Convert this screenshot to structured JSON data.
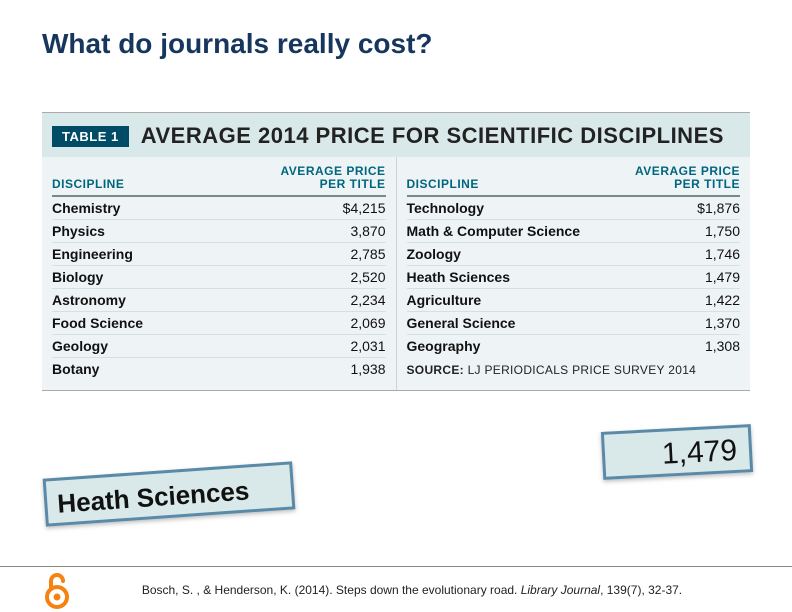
{
  "slide_title": "What do journals really cost?",
  "table": {
    "badge": "TABLE 1",
    "caption": "AVERAGE 2014 PRICE FOR SCIENTIFIC DISCIPLINES",
    "header_discipline": "DISCIPLINE",
    "header_price_line1": "AVERAGE PRICE",
    "header_price_line2": "PER TITLE",
    "background_color": "#eef4f5",
    "title_bg_color": "#d9e8e9",
    "badge_bg": "#004c66",
    "header_color": "#00667f",
    "left": [
      {
        "discipline": "Chemistry",
        "price": "$4,215"
      },
      {
        "discipline": "Physics",
        "price": "3,870"
      },
      {
        "discipline": "Engineering",
        "price": "2,785"
      },
      {
        "discipline": "Biology",
        "price": "2,520"
      },
      {
        "discipline": "Astronomy",
        "price": "2,234"
      },
      {
        "discipline": "Food Science",
        "price": "2,069"
      },
      {
        "discipline": "Geology",
        "price": "2,031"
      },
      {
        "discipline": "Botany",
        "price": "1,938"
      }
    ],
    "right": [
      {
        "discipline": "Technology",
        "price": "$1,876"
      },
      {
        "discipline": "Math & Computer Science",
        "price": "1,750"
      },
      {
        "discipline": "Zoology",
        "price": "1,746"
      },
      {
        "discipline": "Heath Sciences",
        "price": "1,479"
      },
      {
        "discipline": "Agriculture",
        "price": "1,422"
      },
      {
        "discipline": "General Science",
        "price": "1,370"
      },
      {
        "discipline": "Geography",
        "price": "1,308"
      }
    ],
    "source_label": "SOURCE:",
    "source_text": " LJ PERIODICALS PRICE SURVEY 2014"
  },
  "callout": {
    "label": "Heath Sciences",
    "value": "1,479",
    "border_color": "#5b8aa8",
    "bg_color": "#d9e8e9"
  },
  "citation": {
    "prefix": "Bosch, S. , & Henderson, K. (2014). Steps down the evolutionary road. ",
    "journal": "Library Journal",
    "suffix": ", 139(7), 32-37."
  },
  "oa_icon": {
    "color": "#f68212",
    "name": "open-access-icon"
  }
}
